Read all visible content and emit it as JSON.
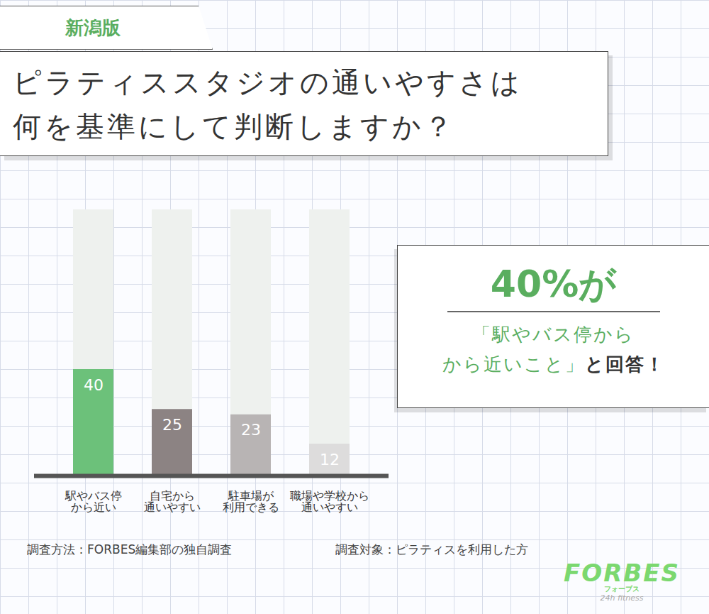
{
  "chart_data": {
    "type": "bar",
    "badge": "新潟版",
    "title": "ピラティススタジオの通いやすさは\n何を基準にして判断しますか？",
    "categories": [
      "駅やバス停\nから近い",
      "自宅から\n通いやすい",
      "駐車場が\n利用できる",
      "職場や学校から\n通いやすい"
    ],
    "values": [
      40,
      25,
      23,
      12
    ],
    "colors": [
      "#6cc17a",
      "#8c8383",
      "#b8b4b4",
      "#dddcdc"
    ],
    "ylim": [
      0,
      100
    ],
    "data_labels": true,
    "tick_labels": "x",
    "annotation": {
      "headline": "40%が",
      "quote": "「駅やバス停から\nから近いこと」",
      "suffix": "と回答！"
    },
    "notes": [
      "調査方法：FORBES編集部の独自調査",
      "調査対象：ピラティスを利用した方"
    ],
    "logo": [
      "FORBES",
      "フォーブス",
      "24h fitness"
    ]
  }
}
